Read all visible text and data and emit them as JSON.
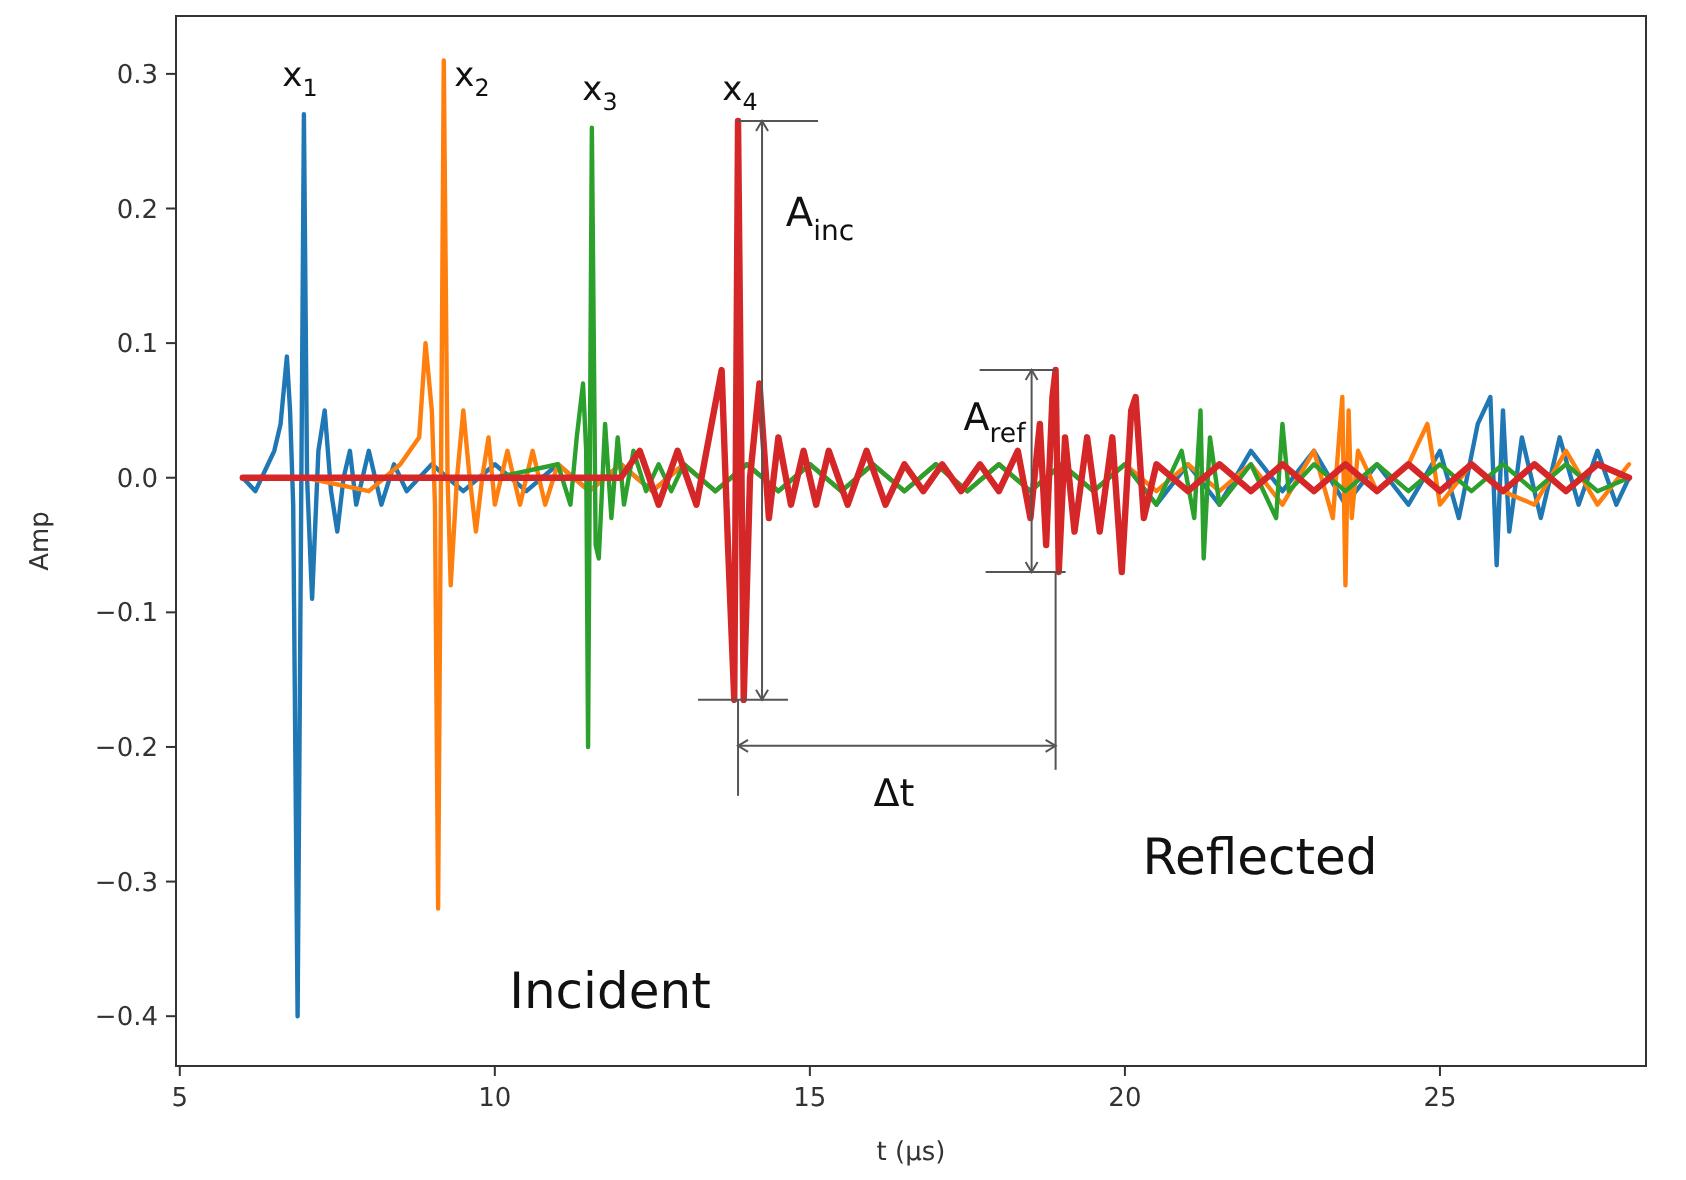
{
  "chart_data": {
    "type": "line",
    "xlabel": "t (μs)",
    "ylabel": "Amp",
    "xlim": [
      4.94,
      28.27
    ],
    "ylim": [
      -0.437,
      0.343
    ],
    "xticks": [
      5,
      10,
      15,
      20,
      25
    ],
    "yticks": [
      {
        "value": -0.4,
        "label": "−0.4"
      },
      {
        "value": -0.3,
        "label": "−0.3"
      },
      {
        "value": -0.2,
        "label": "−0.2"
      },
      {
        "value": -0.1,
        "label": "−0.1"
      },
      {
        "value": 0,
        "label": "0.0"
      },
      0.1,
      0.2,
      0.3
    ],
    "series": [
      {
        "color": "#1f77b4",
        "x": [
          6.0,
          6.2,
          6.4,
          6.5,
          6.6,
          6.7,
          6.75,
          6.8,
          6.87,
          6.97,
          7.02,
          7.1,
          7.2,
          7.3,
          7.4,
          7.5,
          7.6,
          7.7,
          7.8,
          8.0,
          8.2,
          8.4,
          8.6,
          9.0,
          9.5,
          10,
          10.5,
          11,
          11.5,
          12,
          12.5,
          13,
          13.5,
          14,
          14.5,
          15,
          15.5,
          16,
          16.5,
          17,
          17.5,
          18,
          18.5,
          19,
          19.5,
          20,
          20.5,
          21,
          21.5,
          22,
          22.5,
          23,
          23.5,
          24,
          24.5,
          25,
          25.3,
          25.6,
          25.8,
          25.9,
          26.0,
          26.1,
          26.3,
          26.6,
          26.9,
          27.2,
          27.5,
          27.8,
          28.0
        ],
        "values": [
          0,
          -0.01,
          0.01,
          0.02,
          0.04,
          0.09,
          0.05,
          -0.02,
          -0.4,
          0.27,
          0.0,
          -0.09,
          0.02,
          0.05,
          -0.01,
          -0.04,
          0.0,
          0.02,
          -0.02,
          0.02,
          -0.02,
          0.01,
          -0.01,
          0.01,
          -0.01,
          0.01,
          -0.01,
          0.01,
          -0.01,
          0.01,
          -0.01,
          0.01,
          -0.01,
          0.01,
          -0.01,
          0.01,
          -0.01,
          0.01,
          -0.01,
          0.01,
          -0.01,
          0.01,
          -0.01,
          0.01,
          -0.01,
          0.01,
          -0.02,
          0.01,
          -0.02,
          0.02,
          -0.01,
          0.02,
          -0.02,
          0.01,
          -0.02,
          0.02,
          -0.03,
          0.04,
          0.06,
          -0.065,
          0.05,
          -0.04,
          0.03,
          -0.03,
          0.03,
          -0.02,
          0.02,
          -0.02,
          0.0
        ]
      },
      {
        "color": "#ff7f0e",
        "x": [
          6.0,
          7,
          8,
          8.5,
          8.8,
          8.9,
          9.0,
          9.05,
          9.1,
          9.19,
          9.25,
          9.3,
          9.4,
          9.5,
          9.6,
          9.7,
          9.8,
          9.9,
          10.0,
          10.2,
          10.4,
          10.6,
          10.8,
          11.0,
          11.5,
          12,
          12.5,
          13,
          13.5,
          14,
          14.5,
          15,
          15.5,
          16,
          16.5,
          17,
          17.5,
          18,
          18.5,
          19,
          19.5,
          20,
          20.5,
          21,
          21.5,
          22,
          22.5,
          23,
          23.3,
          23.45,
          23.5,
          23.55,
          23.6,
          23.7,
          24.0,
          24.5,
          24.8,
          25.0,
          25.5,
          26,
          26.5,
          27,
          27.5,
          28
        ],
        "values": [
          0,
          0,
          -0.01,
          0.01,
          0.03,
          0.1,
          0.05,
          -0.02,
          -0.32,
          0.31,
          0.0,
          -0.08,
          0.0,
          0.05,
          0.0,
          -0.04,
          0.0,
          0.03,
          -0.02,
          0.02,
          -0.02,
          0.02,
          -0.02,
          0.01,
          -0.01,
          0.01,
          -0.01,
          0.01,
          -0.01,
          0.01,
          -0.01,
          0.01,
          -0.01,
          0.01,
          -0.01,
          0.01,
          -0.01,
          0.01,
          -0.01,
          0.01,
          -0.01,
          0.01,
          -0.01,
          0.01,
          -0.01,
          0.01,
          -0.02,
          0.02,
          -0.03,
          0.06,
          -0.08,
          0.05,
          -0.03,
          0.02,
          -0.01,
          0.01,
          0.04,
          -0.02,
          0.01,
          -0.01,
          -0.02,
          0.02,
          -0.02,
          0.01
        ]
      },
      {
        "color": "#2ca02c",
        "x": [
          6.0,
          8,
          10,
          11.0,
          11.2,
          11.3,
          11.4,
          11.45,
          11.48,
          11.54,
          11.6,
          11.65,
          11.75,
          11.85,
          11.95,
          12.05,
          12.2,
          12.4,
          12.6,
          12.8,
          13,
          13.5,
          14,
          14.5,
          15,
          15.5,
          16,
          16.5,
          17,
          17.5,
          18,
          18.5,
          19,
          19.5,
          20,
          20.5,
          20.9,
          21.1,
          21.2,
          21.25,
          21.35,
          21.5,
          22,
          22.4,
          22.5,
          22.6,
          23,
          23.5,
          24,
          24.5,
          25,
          25.5,
          26,
          26.5,
          27,
          27.5,
          28
        ],
        "values": [
          0,
          0,
          0.0,
          0.01,
          -0.02,
          0.03,
          0.07,
          0.02,
          -0.2,
          0.26,
          -0.05,
          -0.06,
          0.04,
          -0.03,
          0.03,
          -0.02,
          0.02,
          -0.01,
          0.01,
          -0.01,
          0.01,
          -0.01,
          0.01,
          -0.01,
          0.01,
          -0.01,
          0.01,
          -0.01,
          0.01,
          -0.01,
          0.01,
          -0.01,
          0.01,
          -0.01,
          0.01,
          -0.02,
          0.02,
          -0.03,
          0.05,
          -0.06,
          0.03,
          -0.02,
          0.01,
          -0.03,
          0.04,
          -0.01,
          0.01,
          -0.01,
          0.01,
          -0.01,
          0.01,
          -0.01,
          0.01,
          -0.01,
          0.01,
          -0.01,
          0.0
        ]
      },
      {
        "color": "#d62728",
        "x": [
          6.0,
          8,
          10,
          12,
          12.3,
          12.6,
          12.9,
          13.2,
          13.4,
          13.6,
          13.7,
          13.8,
          13.86,
          13.95,
          14.05,
          14.2,
          14.35,
          14.5,
          14.7,
          14.9,
          15.1,
          15.3,
          15.6,
          15.9,
          16.2,
          16.5,
          16.8,
          17.1,
          17.4,
          17.7,
          18.0,
          18.3,
          18.5,
          18.65,
          18.75,
          18.85,
          18.9,
          18.95,
          19.05,
          19.2,
          19.4,
          19.6,
          19.8,
          19.95,
          20.1,
          20.17,
          20.3,
          20.5,
          21,
          21.5,
          22,
          22.5,
          23,
          23.5,
          24,
          24.5,
          25,
          25.5,
          26,
          26.5,
          27,
          27.5,
          28
        ],
        "values": [
          0,
          0,
          0,
          0,
          0.02,
          -0.02,
          0.02,
          -0.02,
          0.03,
          0.08,
          -0.05,
          -0.165,
          0.265,
          -0.165,
          0.0,
          0.07,
          -0.03,
          0.03,
          -0.02,
          0.02,
          -0.02,
          0.02,
          -0.02,
          0.02,
          -0.02,
          0.01,
          -0.01,
          0.01,
          -0.01,
          0.01,
          -0.01,
          0.02,
          -0.03,
          0.04,
          -0.05,
          0.06,
          0.08,
          -0.07,
          0.03,
          -0.04,
          0.03,
          -0.04,
          0.03,
          -0.07,
          0.05,
          0.06,
          -0.03,
          0.01,
          -0.01,
          0.01,
          -0.01,
          0.01,
          -0.01,
          0.01,
          -0.01,
          0.01,
          -0.01,
          0.01,
          -0.01,
          0.01,
          -0.01,
          0.01,
          0.0
        ]
      }
    ],
    "annotations": [
      "x$_{1}$",
      "x$_{2}$",
      "x$_{3}$",
      "x$_{4}$",
      "A$_{inc}$",
      {
        "text": "A$_{ref}$",
        "x": 18.9,
        "y": 0.08
      },
      "Δt",
      "Reflected",
      "Incident"
    ]
  }
}
